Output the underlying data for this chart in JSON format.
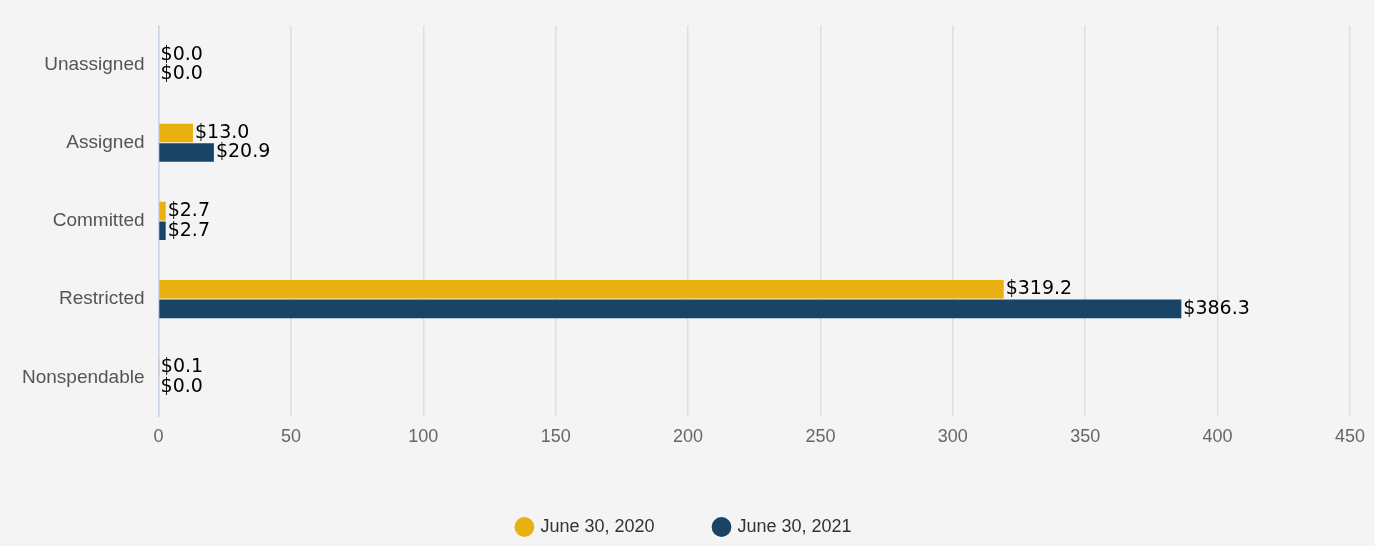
{
  "chart_data": {
    "type": "bar",
    "orientation": "horizontal",
    "categories": [
      "Unassigned",
      "Assigned",
      "Committed",
      "Restricted",
      "Nonspendable"
    ],
    "series": [
      {
        "name": "June 30, 2020",
        "color": "#e9b10f",
        "values": [
          0.0,
          13.0,
          2.7,
          319.2,
          0.1
        ],
        "value_labels": [
          "$0.0",
          "$13.0",
          "$2.7",
          "$319.2",
          "$0.1"
        ]
      },
      {
        "name": "June 30, 2021",
        "color": "#1a4466",
        "values": [
          0.0,
          20.9,
          2.7,
          386.3,
          0.0
        ],
        "value_labels": [
          "$0.0",
          "$20.9",
          "$2.7",
          "$386.3",
          "$0.0"
        ]
      }
    ],
    "xlim": [
      0,
      450
    ],
    "xticks": [
      0,
      50,
      100,
      150,
      200,
      250,
      300,
      350,
      400,
      450
    ],
    "grid": "x",
    "legend": "bottom"
  }
}
